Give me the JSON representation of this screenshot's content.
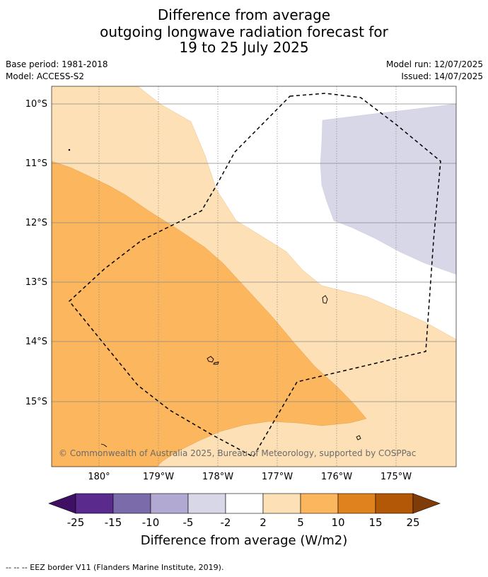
{
  "title": {
    "line1": "Difference from average",
    "line2": "outgoing longwave radiation forecast for",
    "line3": "19 to 25 July 2025"
  },
  "meta": {
    "base_period": "Base period: 1981-2018",
    "model": "Model: ACCESS-S2",
    "model_run": "Model run: 12/07/2025",
    "issued": "Issued: 14/07/2025"
  },
  "map": {
    "lat_labels": [
      "10°S",
      "11°S",
      "12°S",
      "13°S",
      "14°S",
      "15°S"
    ],
    "lon_labels": [
      "180°",
      "179°W",
      "178°W",
      "177°W",
      "176°W",
      "175°W"
    ],
    "copyright": "© Commonwealth of Australia 2025, Bureau of Meteorology, supported by COSPPac"
  },
  "colorbar": {
    "ticks": [
      "-25",
      "-15",
      "-10",
      "-5",
      "-2",
      "2",
      "5",
      "10",
      "15",
      "25"
    ],
    "colors": [
      "#3f0f63",
      "#5a2a8c",
      "#7b6baa",
      "#b1a9d1",
      "#d7d7e8",
      "#ffffff",
      "#fde0b6",
      "#fbb65e",
      "#e0821e",
      "#b35806",
      "#7f3b08"
    ],
    "title": "Difference from average (W/m2)"
  },
  "legend": {
    "eez_text": "--  --  -- EEZ border V11 (Flanders Marine Institute, 2019)."
  }
}
